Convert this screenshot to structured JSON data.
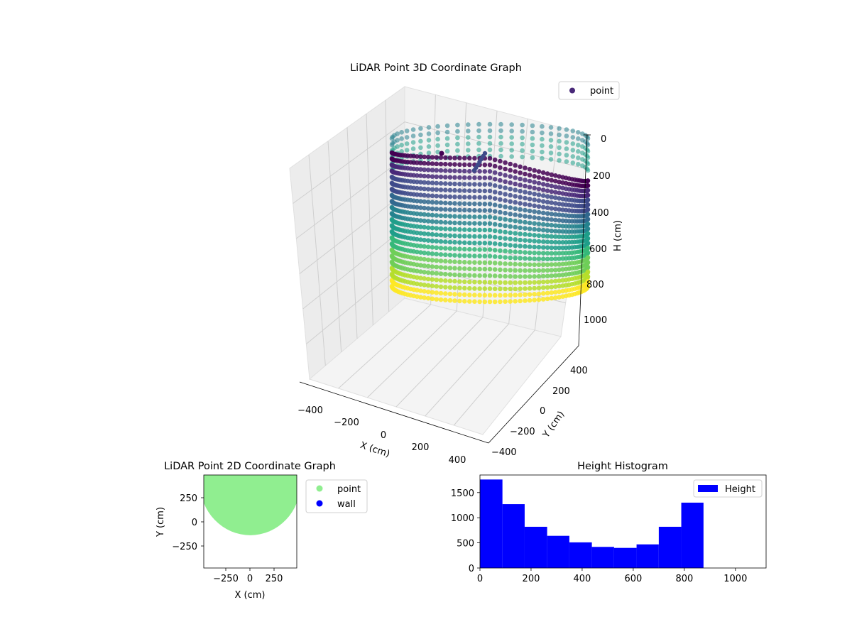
{
  "chart_data": [
    {
      "type": "scatter",
      "projection": "3d",
      "title": "LiDAR Point 3D Coordinate Graph",
      "xlabel": "X (cm)",
      "ylabel": "Y (cm)",
      "zlabel": "H (cm)",
      "xticks": [
        "−400",
        "−200",
        "0",
        "200",
        "400"
      ],
      "yticks": [
        "−400",
        "−200",
        "0",
        "200",
        "400"
      ],
      "zticks": [
        "0",
        "200",
        "400",
        "600",
        "800",
        "1000"
      ],
      "xlim": [
        -450,
        450
      ],
      "ylim": [
        -450,
        450
      ],
      "zlim": [
        1100,
        0
      ],
      "z_inverted": true,
      "grid": true,
      "colormap": "viridis",
      "legend": {
        "position": "top-right",
        "entries": [
          {
            "label": "point",
            "color": "#482878"
          }
        ]
      },
      "shape": "curved wall of points, radius ≈ 450 cm, heights 0–900 cm, open toward +Y"
    },
    {
      "type": "scatter",
      "title": "LiDAR Point 2D Coordinate Graph",
      "xlabel": "X (cm)",
      "ylabel": "Y (cm)",
      "xticks": [
        "−250",
        "0",
        "250"
      ],
      "yticks": [
        "250",
        "0",
        "−250"
      ],
      "xlim": [
        -480,
        480
      ],
      "ylim": [
        -480,
        480
      ],
      "legend": {
        "position": "outside-right",
        "entries": [
          {
            "label": "point",
            "color": "#90ee90"
          },
          {
            "label": "wall",
            "color": "#0000ff"
          }
        ]
      },
      "region": {
        "fill": "#90ee90",
        "shape": "half-disc, filled for Y from −100 upward to the top edge"
      }
    },
    {
      "type": "histogram",
      "title": "Height Histogram",
      "xticks": [
        "0",
        "200",
        "400",
        "600",
        "800",
        "1000"
      ],
      "yticks": [
        "0",
        "500",
        "1000",
        "1500"
      ],
      "xlim": [
        0,
        1120
      ],
      "ylim": [
        0,
        1850
      ],
      "color": "#0000ff",
      "bin_edges": [
        0,
        88,
        175,
        263,
        350,
        438,
        525,
        613,
        700,
        788,
        875
      ],
      "values": [
        1760,
        1270,
        820,
        640,
        510,
        420,
        400,
        470,
        820,
        1300
      ],
      "legend": {
        "position": "top-right",
        "entries": [
          {
            "label": "Height",
            "color": "#0000ff"
          }
        ]
      }
    }
  ]
}
